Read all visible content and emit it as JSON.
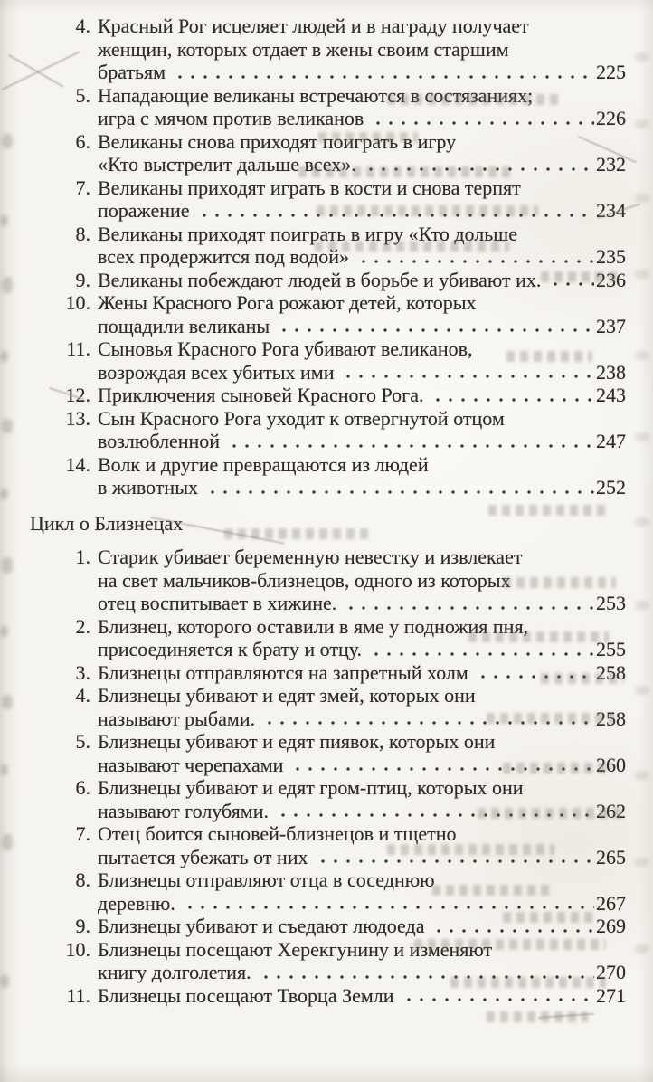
{
  "colors": {
    "paper": "#f6f4ef",
    "ink": "#2e2b27",
    "leader_dot": "#39352f"
  },
  "toc": {
    "sections": [
      {
        "heading": "",
        "items": [
          {
            "num": "4.",
            "lines": [
              "Красный Рог исцеляет людей и в награду получает",
              "женщин, которых отдает в жены своим старшим",
              "братьям"
            ],
            "page": "225"
          },
          {
            "num": "5.",
            "lines": [
              "Нападающие великаны встречаются в состязаниях;",
              "игра с мячом против великанов"
            ],
            "page": "226"
          },
          {
            "num": "6.",
            "lines": [
              "Великаны снова приходят поиграть в игру",
              "«Кто выстрелит дальше всех»."
            ],
            "page": "232"
          },
          {
            "num": "7.",
            "lines": [
              "Великаны приходят играть в кости и снова терпят",
              "поражение"
            ],
            "page": "234"
          },
          {
            "num": "8.",
            "lines": [
              "Великаны приходят поиграть в игру «Кто дольше",
              "всех продержится под водой»"
            ],
            "page": "235"
          },
          {
            "num": "9.",
            "lines": [
              "Великаны побеждают людей в борьбе и убивают их."
            ],
            "page": "236"
          },
          {
            "num": "10.",
            "lines": [
              "Жены Красного Рога рожают детей, которых",
              "пощадили великаны"
            ],
            "page": "237"
          },
          {
            "num": "11.",
            "lines": [
              "Сыновья Красного Рога убивают великанов,",
              "возрождая всех убитых ими"
            ],
            "page": "238"
          },
          {
            "num": "12.",
            "lines": [
              "Приключения сыновей Красного Рога."
            ],
            "page": "243"
          },
          {
            "num": "13.",
            "lines": [
              "Сын Красного Рога уходит к отвергнутой отцом",
              "возлюбленной"
            ],
            "page": "247"
          },
          {
            "num": "14.",
            "lines": [
              "Волк и другие превращаются из людей",
              "в животных"
            ],
            "page": "252"
          }
        ]
      },
      {
        "heading": "Цикл о Близнецах",
        "items": [
          {
            "num": "1.",
            "lines": [
              "Старик убивает беременную невестку и извлекает",
              "на свет мальчиков-близнецов, одного из которых",
              "отец воспитывает в хижине."
            ],
            "page": "253"
          },
          {
            "num": "2.",
            "lines": [
              "Близнец, которого оставили в яме у подножия пня,",
              "присоединяется к брату и отцу."
            ],
            "page": "255"
          },
          {
            "num": "3.",
            "lines": [
              "Близнецы отправляются на запретный холм"
            ],
            "page": "258"
          },
          {
            "num": "4.",
            "lines": [
              "Близнецы убивают и едят змей, которых они",
              "называют рыбами."
            ],
            "page": "258"
          },
          {
            "num": "5.",
            "lines": [
              "Близнецы убивают и едят пиявок, которых они",
              "называют черепахами"
            ],
            "page": "260"
          },
          {
            "num": "6.",
            "lines": [
              "Близнецы убивают и едят гром-птиц, которых они",
              "называют голубями."
            ],
            "page": "262"
          },
          {
            "num": "7.",
            "lines": [
              "Отец боится сыновей-близнецов и тщетно",
              "пытается убежать от них"
            ],
            "page": "265"
          },
          {
            "num": "8.",
            "lines": [
              "Близнецы отправляют отца в соседнюю",
              "деревню."
            ],
            "page": "267"
          },
          {
            "num": "9.",
            "lines": [
              "Близнецы убивают и съедают людоеда"
            ],
            "page": "269"
          },
          {
            "num": "10.",
            "lines": [
              "Близнецы посещают Херекгунину и изменяют",
              "книгу долголетия."
            ],
            "page": "270"
          },
          {
            "num": "11.",
            "lines": [
              "Близнецы посещают Творца Земли"
            ],
            "page": "271"
          }
        ]
      }
    ]
  }
}
